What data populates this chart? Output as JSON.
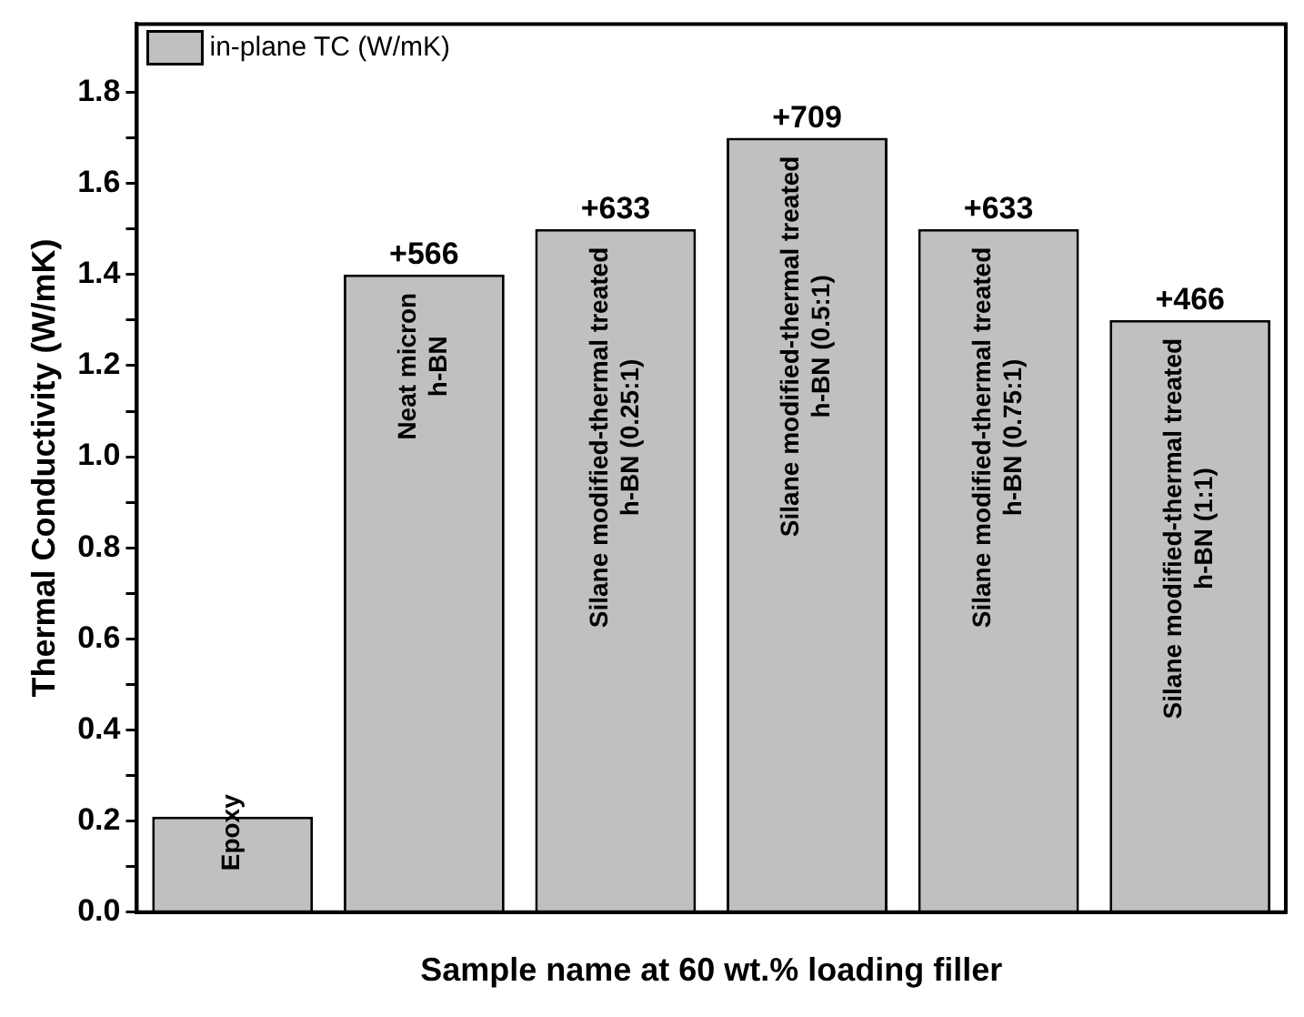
{
  "chart_data": {
    "type": "bar",
    "xlabel": "Sample name at 60 wt.% loading filler",
    "ylabel": "Thermal Conductivity (W/mK)",
    "categories": [
      "Epoxy",
      "Neat micron\nh-BN",
      "Silane modified-thermal treated\nh-BN (0.25:1)",
      "Silane modified-thermal treated\nh-BN (0.5:1)",
      "Silane modified-thermal treated\nh-BN (0.75:1)",
      "Silane modified-thermal treated\nh-BN (1:1)"
    ],
    "series": [
      {
        "name": "in-plane TC (W/mK)",
        "color": "#c0c0c0",
        "values": [
          0.21,
          1.4,
          1.5,
          1.7,
          1.5,
          1.3
        ]
      }
    ],
    "annotations": [
      {
        "text": "+566",
        "x": "Neat micron\nh-BN",
        "y": 1.4
      },
      {
        "text": "+633",
        "x": "Silane modified-thermal treated\nh-BN (0.25:1)",
        "y": 1.5
      },
      {
        "text": "+709",
        "x": "Silane modified-thermal treated\nh-BN (0.5:1)",
        "y": 1.7
      },
      {
        "text": "+633",
        "x": "Silane modified-thermal treated\nh-BN (0.75:1)",
        "y": 1.5
      },
      {
        "text": "+466",
        "x": "Silane modified-thermal treated\nh-BN (1:1)",
        "y": 1.3
      }
    ],
    "ylim": [
      0,
      1.95
    ],
    "yticks": [
      {
        "value": 0,
        "label": "0.0"
      },
      {
        "value": 0.1,
        "label": null
      },
      {
        "value": 0.2,
        "label": "0.2"
      },
      {
        "value": 0.3,
        "label": null
      },
      {
        "value": 0.4,
        "label": "0.4"
      },
      {
        "value": 0.5,
        "label": null
      },
      {
        "value": 0.6,
        "label": "0.6"
      },
      {
        "value": 0.7,
        "label": null
      },
      {
        "value": 0.8,
        "label": "0.8"
      },
      {
        "value": 0.9,
        "label": null
      },
      {
        "value": 1.0,
        "label": "1.0"
      },
      {
        "value": 1.1,
        "label": null
      },
      {
        "value": 1.2,
        "label": "1.2"
      },
      {
        "value": 1.3,
        "label": null
      },
      {
        "value": 1.4,
        "label": "1.4"
      },
      {
        "value": 1.5,
        "label": null
      },
      {
        "value": 1.6,
        "label": "1.6"
      },
      {
        "value": 1.7,
        "label": null
      },
      {
        "value": 1.8,
        "label": "1.8"
      }
    ],
    "grid": false,
    "legend": "top left"
  }
}
